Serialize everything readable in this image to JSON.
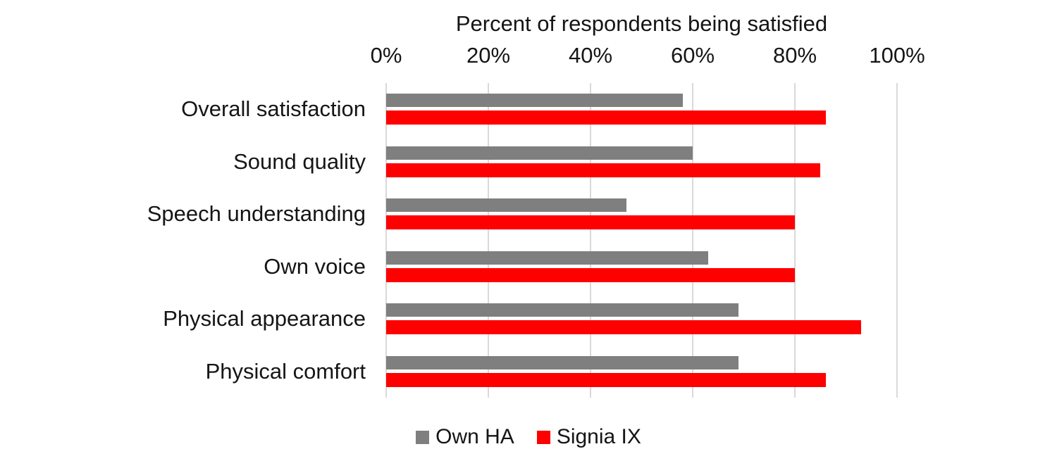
{
  "chart_data": {
    "type": "bar",
    "orientation": "horizontal",
    "title": "Percent of respondents being satisfied",
    "categories": [
      "Overall satisfaction",
      "Sound quality",
      "Speech understanding",
      "Own voice",
      "Physical appearance",
      "Physical comfort"
    ],
    "series": [
      {
        "name": "Own HA",
        "color": "#7f7f7f",
        "values": [
          58,
          60,
          47,
          63,
          69,
          69
        ]
      },
      {
        "name": "Signia IX",
        "color": "#fe0000",
        "values": [
          86,
          85,
          80,
          80,
          93,
          86
        ]
      }
    ],
    "xlim": [
      0,
      100
    ],
    "x_tick_labels": [
      "0%",
      "20%",
      "40%",
      "60%",
      "80%",
      "100%"
    ],
    "grid": "vertical",
    "gridline_color": "#d9d9d9",
    "text_color": "#151515",
    "background": "#ffffff",
    "legend_position": "bottom-center"
  }
}
